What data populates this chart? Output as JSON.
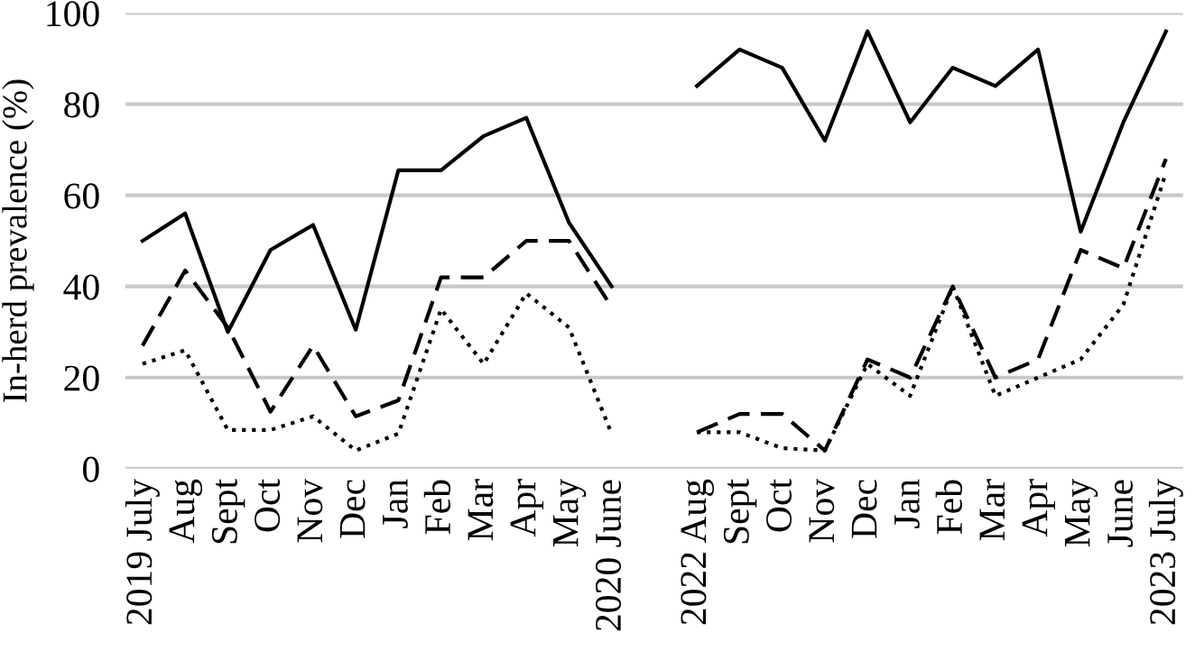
{
  "chart_data": {
    "type": "line",
    "ylabel": "In-herd prevalence (%)",
    "categories": [
      "2019 July",
      "Aug",
      "Sept",
      "Oct",
      "Nov",
      "Dec",
      "Jan",
      "Feb",
      "Mar",
      "Apr",
      "May",
      "2020 June",
      null,
      "2022 Aug",
      "Sept",
      "Oct",
      "Nov",
      "Dec",
      "Jan",
      "Feb",
      "Mar",
      "Apr",
      "May",
      "June",
      "2023 July"
    ],
    "series": [
      {
        "color": "#000000",
        "line_style": "solid",
        "values": [
          50,
          56,
          30,
          48,
          53.5,
          30.5,
          65.5,
          65.5,
          73,
          77,
          54,
          40,
          null,
          84,
          92,
          88,
          72,
          96,
          76,
          88,
          84,
          92,
          52,
          76,
          96
        ]
      },
      {
        "color": "#000000",
        "line_style": "dashed",
        "values": [
          27,
          43.5,
          31,
          12.5,
          27,
          11.5,
          15,
          42,
          42,
          50,
          50,
          35.5,
          null,
          8,
          12,
          12,
          4,
          24,
          20,
          40,
          20,
          24,
          48,
          44,
          68
        ]
      },
      {
        "color": "#000000",
        "line_style": "dotted",
        "values": [
          23,
          26,
          8.5,
          8.5,
          11.5,
          4,
          7.7,
          35,
          23,
          38.5,
          31,
          7.7,
          null,
          8,
          8,
          4.5,
          4,
          23,
          16,
          40,
          16,
          20,
          24,
          36,
          65
        ]
      }
    ],
    "ylim": [
      0,
      100
    ],
    "yticks": [
      0,
      20,
      40,
      60,
      80,
      100
    ],
    "grid": "y",
    "marker": "none"
  }
}
